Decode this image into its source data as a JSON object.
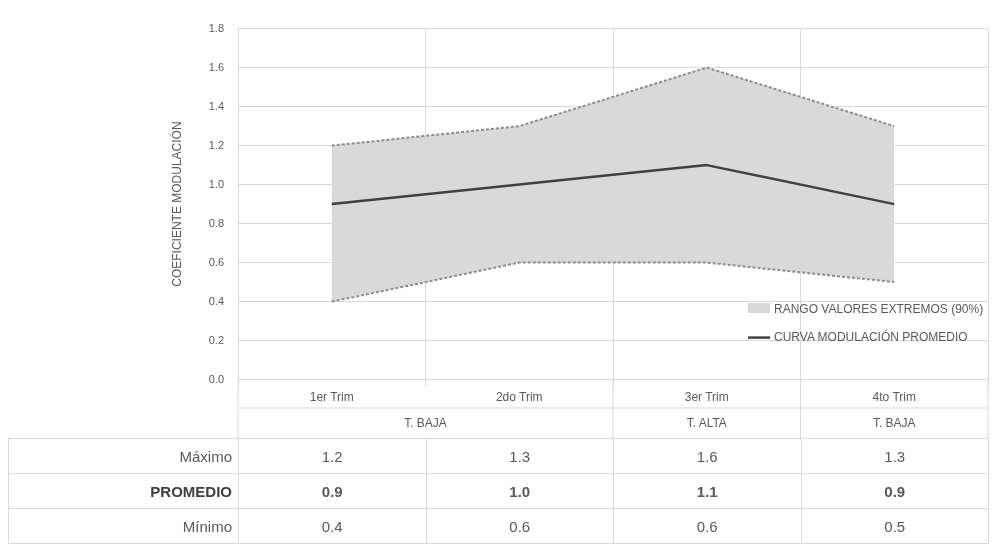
{
  "chart_data": {
    "type": "line",
    "ylabel": "COEFICIENTE MODULACIÓN",
    "categories": [
      "1er Trim",
      "2do Trim",
      "3er Trim",
      "4to Trim"
    ],
    "series": [
      {
        "color": "#8c8c8c",
        "line_style": "dashed",
        "values": [
          1.2,
          1.3,
          1.6,
          1.3
        ],
        "value_labels": [
          "1.2",
          "1.3",
          "1.6",
          "1.3"
        ]
      },
      {
        "name": "PROMEDIO",
        "color": "#404040",
        "line_style": "solid",
        "values": [
          0.9,
          1.0,
          1.1,
          0.9
        ],
        "value_labels": [
          "0.9",
          "1.0",
          "1.1",
          "0.9"
        ],
        "lower": [
          0.4,
          0.6,
          0.6,
          0.5
        ],
        "upper": [
          1.2,
          1.3,
          1.6,
          1.3
        ]
      },
      {
        "color": "#8c8c8c",
        "line_style": "dashed",
        "values": [
          0.4,
          0.6,
          0.6,
          0.5
        ],
        "value_labels": [
          "0.4",
          "0.6",
          "0.6",
          "0.5"
        ]
      }
    ],
    "ylim": [
      0,
      1.8
    ],
    "yticks": [
      {
        "value": 0,
        "label": "0.0"
      },
      0.2,
      0.4,
      0.6,
      0.8,
      {
        "value": 1,
        "label": "1.0"
      },
      1.2,
      1.4,
      1.6,
      1.8
    ],
    "grid": true,
    "annotations": [
      "T. BAJA",
      "T. ALTA",
      "T. BAJA",
      "RANGO VALORES EXTREMOS (90%)",
      "CURVA MODULACIÓN PROMEDIO",
      "Máximo",
      "Mínimo"
    ]
  }
}
